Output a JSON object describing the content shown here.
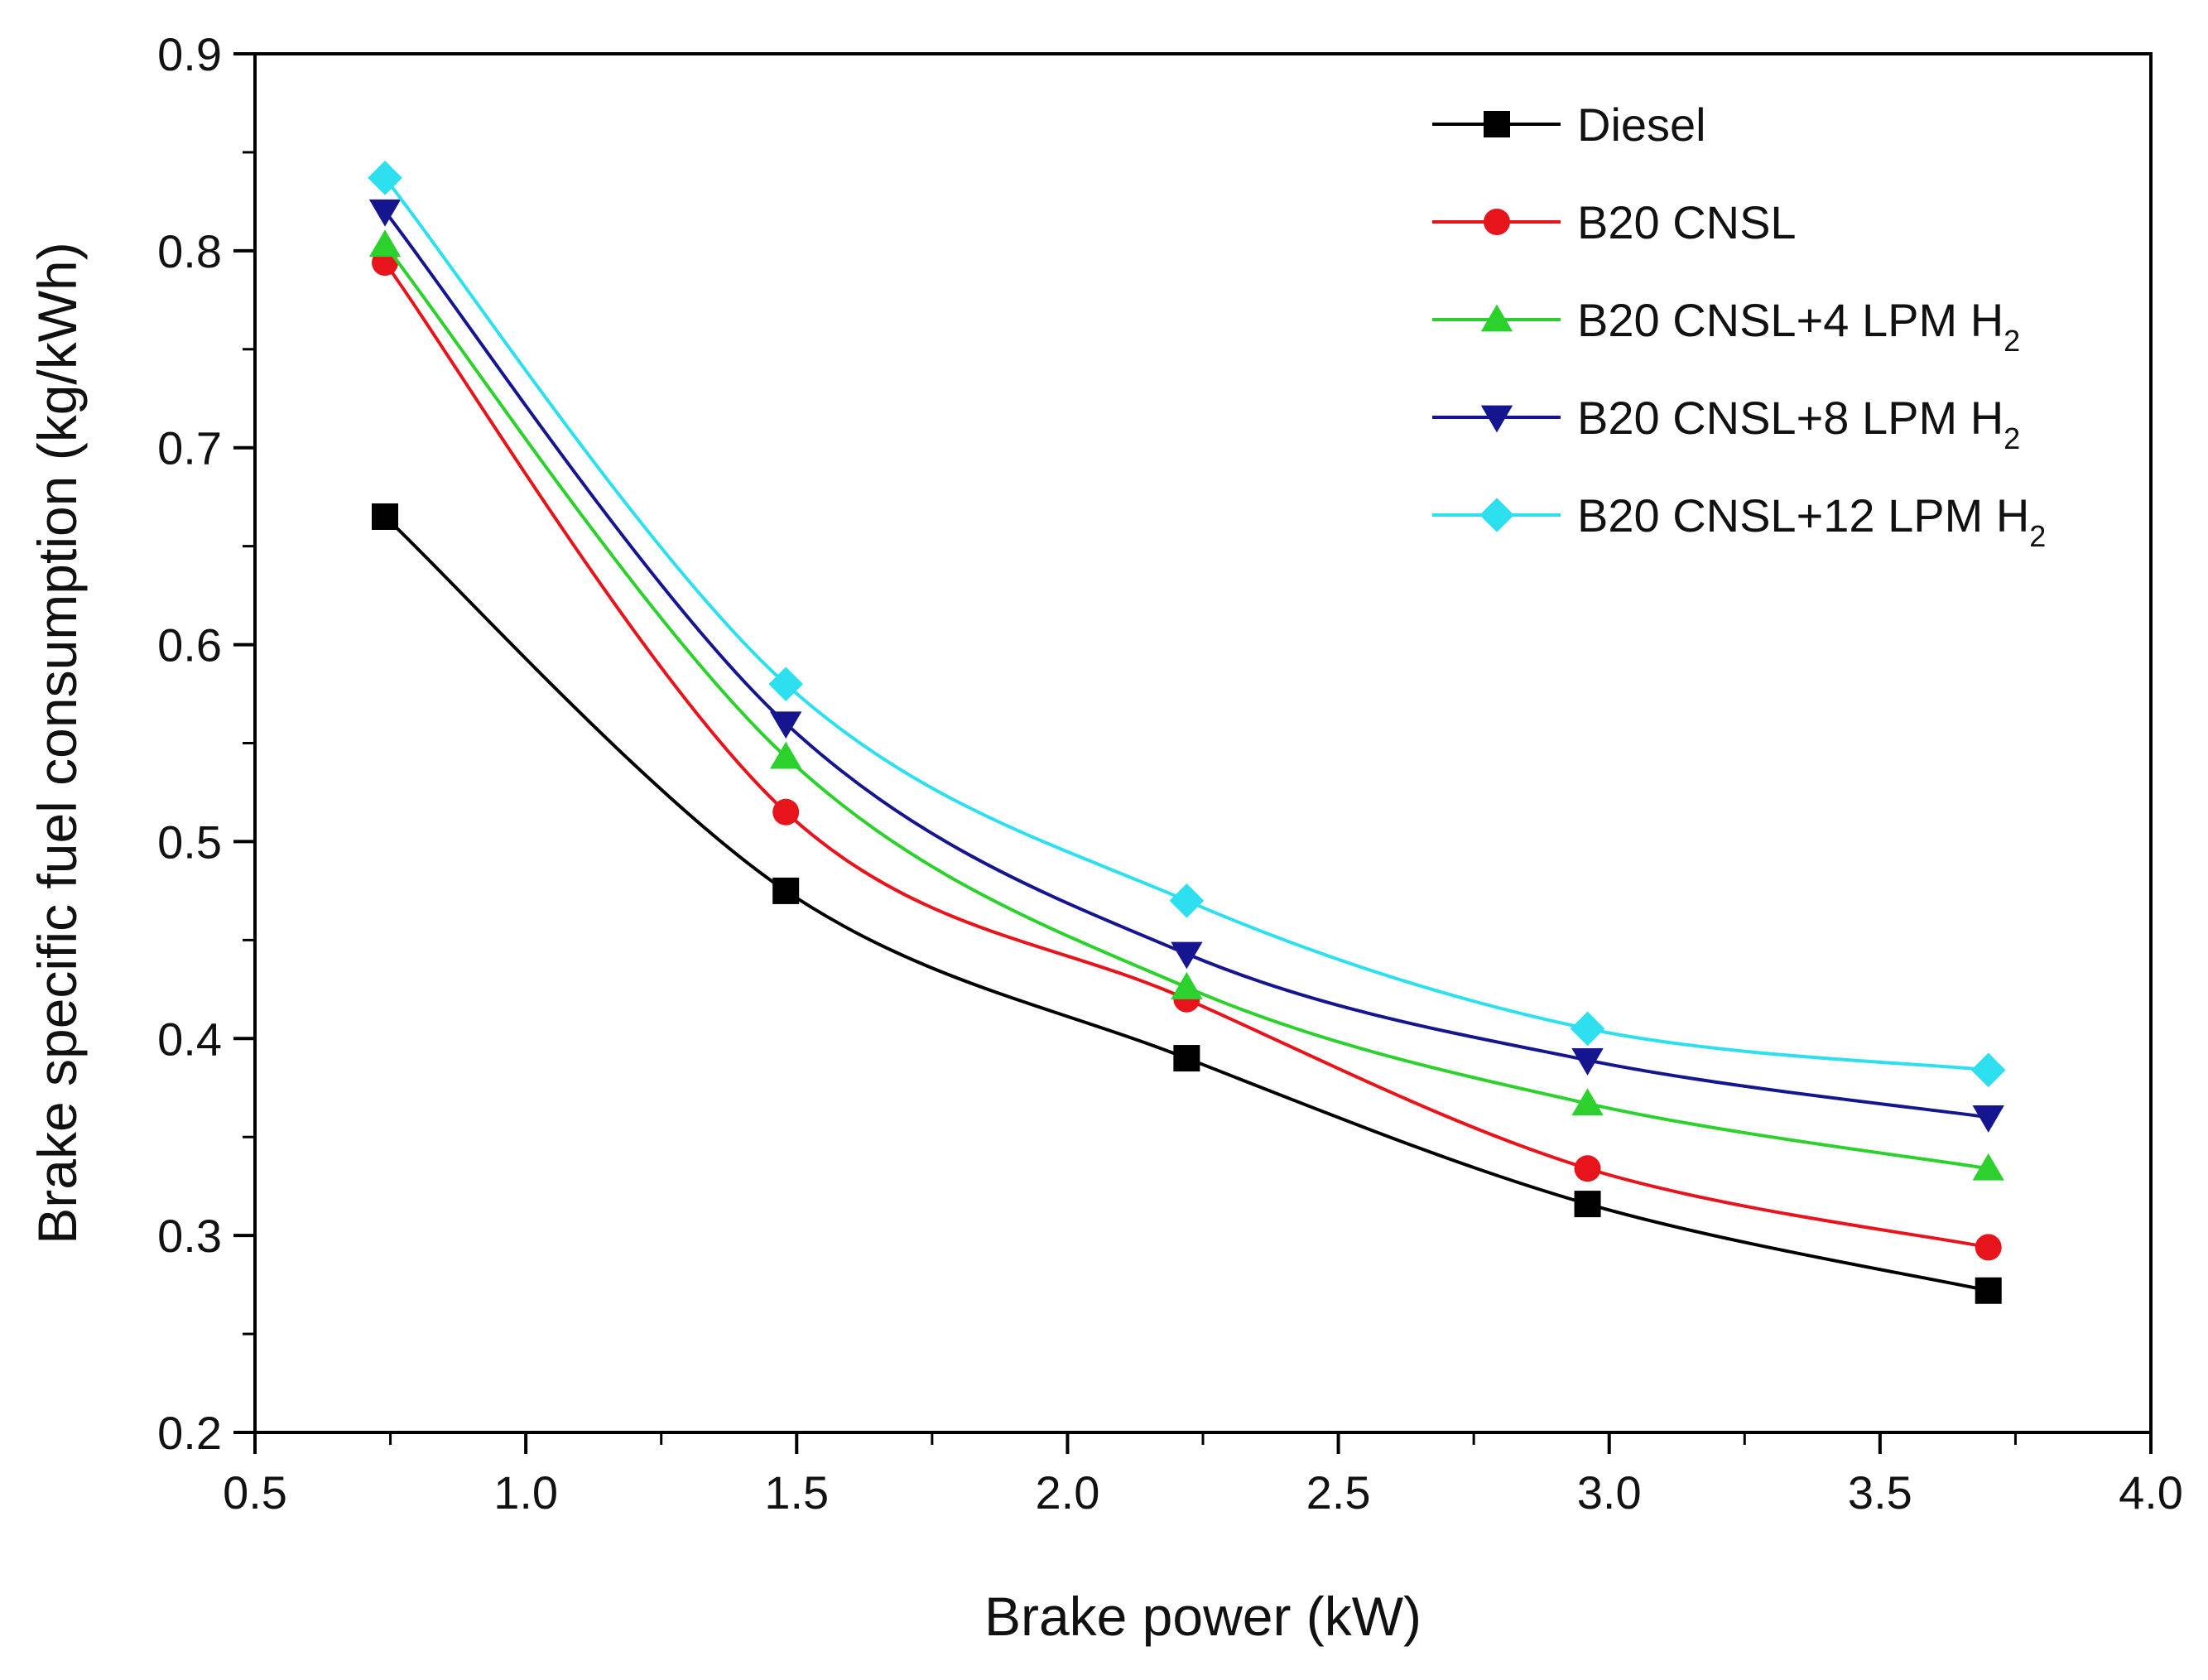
{
  "chart_data": {
    "type": "line",
    "title": "",
    "xlabel": "Brake power (kW)",
    "ylabel": "Brake specific fuel consumption (kg/kWh)",
    "xlim": [
      0.5,
      4.0
    ],
    "ylim": [
      0.2,
      0.9
    ],
    "x_ticks": [
      "0.5",
      "1.0",
      "1.5",
      "2.0",
      "2.5",
      "3.0",
      "3.5",
      "4.0"
    ],
    "y_ticks": [
      "0.2",
      "0.3",
      "0.4",
      "0.5",
      "0.6",
      "0.7",
      "0.8",
      "0.9"
    ],
    "grid": false,
    "legend_position": "top-right",
    "x": [
      0.74,
      1.48,
      2.22,
      2.96,
      3.7
    ],
    "series": [
      {
        "name": "Diesel",
        "name_main": "Diesel",
        "name_sub": "",
        "color": "#000000",
        "marker": "square",
        "values": [
          0.665,
          0.475,
          0.39,
          0.316,
          0.272
        ]
      },
      {
        "name": "B20 CNSL",
        "name_main": "B20 CNSL",
        "name_sub": "",
        "color": "#e8141c",
        "marker": "circle",
        "values": [
          0.794,
          0.515,
          0.42,
          0.334,
          0.294
        ]
      },
      {
        "name": "B20 CNSL+4 LPM H2",
        "name_main": "B20 CNSL+4 LPM H",
        "name_sub": "2",
        "color": "#2dd12d",
        "marker": "triangle-up",
        "values": [
          0.803,
          0.543,
          0.426,
          0.367,
          0.334
        ]
      },
      {
        "name": "B20 CNSL+8 LPM H2",
        "name_main": "B20 CNSL+8 LPM H",
        "name_sub": "2",
        "color": "#15158f",
        "marker": "triangle-down",
        "values": [
          0.82,
          0.56,
          0.443,
          0.389,
          0.36
        ]
      },
      {
        "name": "B20 CNSL+12 LPM H2",
        "name_main": "B20 CNSL+12 LPM H",
        "name_sub": "2",
        "color": "#2ee0ef",
        "marker": "diamond",
        "values": [
          0.837,
          0.58,
          0.47,
          0.405,
          0.384
        ]
      }
    ]
  }
}
